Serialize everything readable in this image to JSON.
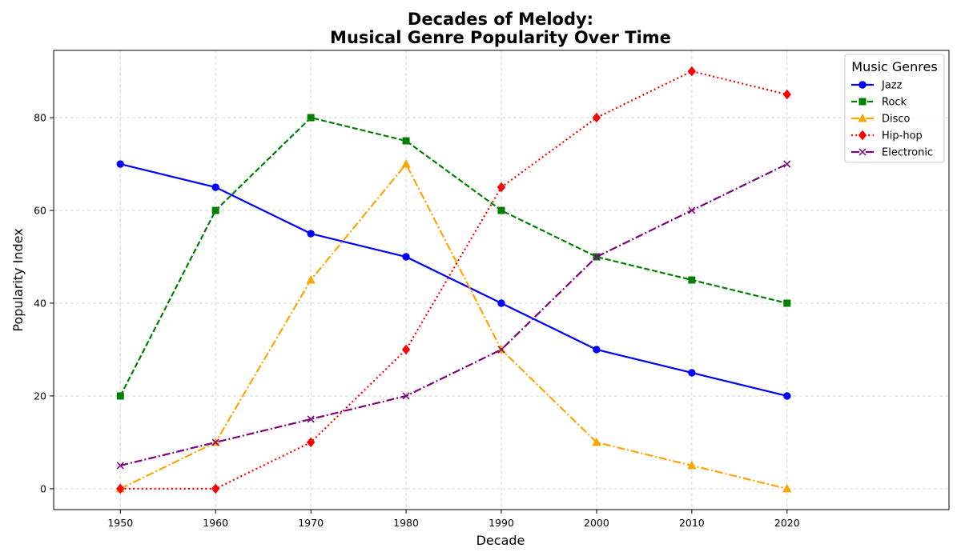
{
  "chart_data": {
    "type": "line",
    "title_line1": "Decades of Melody:",
    "title_line2": "Musical Genre Popularity Over Time",
    "xlabel": "Decade",
    "ylabel": "Popularity Index",
    "x": [
      1950,
      1960,
      1970,
      1980,
      1990,
      2000,
      2010,
      2020
    ],
    "xlim": [
      1943,
      2037
    ],
    "ylim": [
      -4.5,
      94.5
    ],
    "yticks": [
      0,
      20,
      40,
      60,
      80
    ],
    "grid": true,
    "legend_title": "Music Genres",
    "legend_position": "top-right",
    "series": [
      {
        "name": "Jazz",
        "color": "#0000ff",
        "linestyle": "solid",
        "marker": "circle",
        "values": [
          70,
          65,
          55,
          50,
          40,
          30,
          25,
          20
        ]
      },
      {
        "name": "Rock",
        "color": "#008000",
        "linestyle": "dashed",
        "marker": "square",
        "values": [
          20,
          60,
          80,
          75,
          60,
          50,
          45,
          40
        ]
      },
      {
        "name": "Disco",
        "color": "#ffa500",
        "linestyle": "dashdot",
        "marker": "triangle",
        "values": [
          0,
          10,
          45,
          70,
          30,
          10,
          5,
          0
        ]
      },
      {
        "name": "Hip-hop",
        "color": "#ff0000",
        "linestyle": "dotted",
        "marker": "diamond",
        "values": [
          0,
          0,
          10,
          30,
          65,
          80,
          90,
          85
        ]
      },
      {
        "name": "Electronic",
        "color": "#800080",
        "linestyle": "dashdot",
        "marker": "x",
        "values": [
          5,
          10,
          15,
          20,
          30,
          50,
          60,
          70
        ]
      }
    ]
  }
}
